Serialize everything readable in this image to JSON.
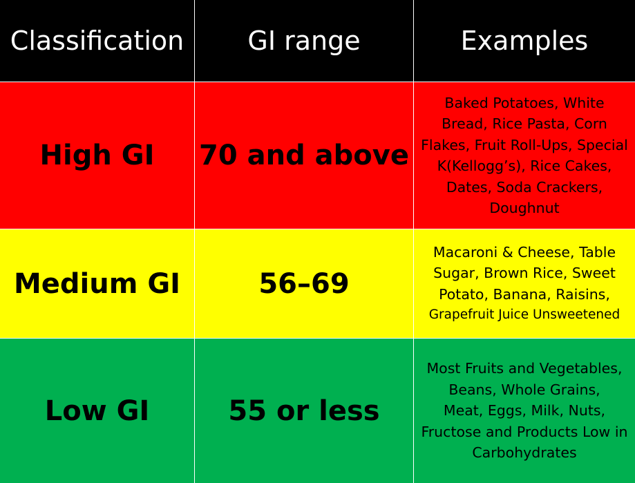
{
  "table": {
    "headers": [
      "Classification",
      "GI range",
      "Examples"
    ],
    "rows": [
      {
        "classification": "High GI",
        "range": "70 and above",
        "examples_lines": [
          "Baked Potatoes, White",
          "Bread, Rice Pasta, Corn",
          "Flakes, Fruit Roll-Ups, Special",
          "K(Kellogg’s), Rice Cakes,",
          "Dates, Soda Crackers,",
          "Doughnut"
        ],
        "color": "#ff0000"
      },
      {
        "classification": "Medium GI",
        "range": "56–69",
        "examples_lines": [
          "Macaroni & Cheese, Table",
          "Sugar, Brown Rice, Sweet",
          "Potato, Banana, Raisins,",
          "Grapefruit Juice Unsweetened"
        ],
        "color": "#ffff00"
      },
      {
        "classification": "Low GI",
        "range": "55 or less",
        "examples_lines": [
          "Most Fruits and Vegetables,",
          "Beans, Whole Grains,",
          "Meat, Eggs, Milk, Nuts,",
          "Fructose and Products Low in",
          "Carbohydrates"
        ],
        "color": "#00b050"
      }
    ],
    "header_color": "#000000"
  }
}
